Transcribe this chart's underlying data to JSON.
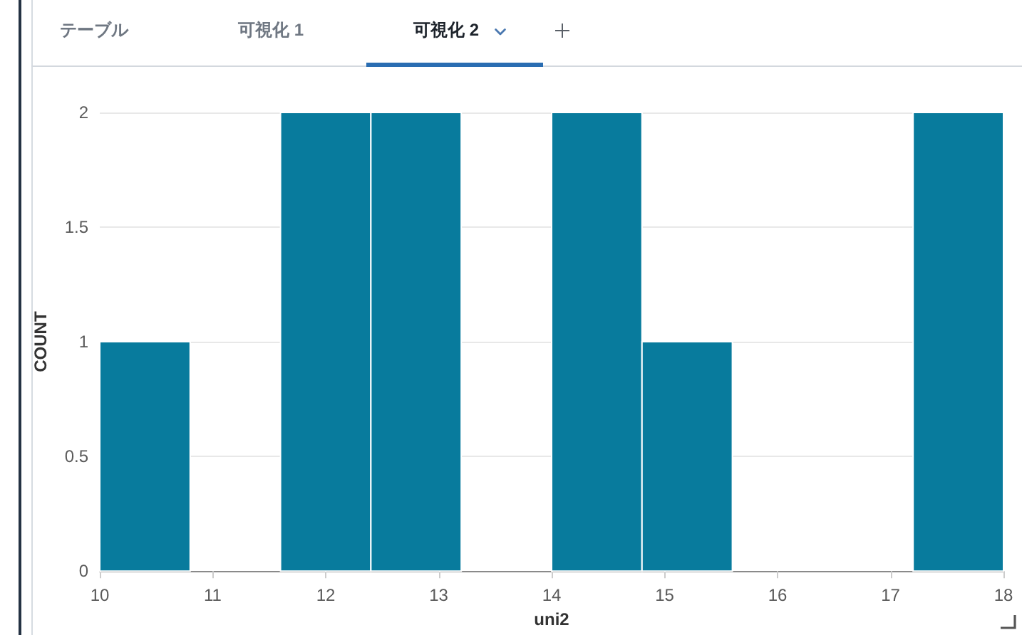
{
  "chart_data": {
    "type": "histogram",
    "annotations": [
      "テーブル",
      "可視化 1",
      "可視化 2"
    ],
    "xlabel": "uni2",
    "ylabel": "COUNT",
    "bins": [
      10,
      10.8,
      11.6,
      12.4,
      13.2,
      14,
      14.8,
      15.6,
      16.4,
      17.2,
      18
    ],
    "values": [
      1,
      0,
      2,
      2,
      0,
      2,
      1,
      0,
      0,
      2
    ],
    "color": "#087b9d",
    "xlim": [
      10,
      18
    ],
    "xticks": [
      10,
      11,
      12,
      13,
      14,
      15,
      16,
      17,
      18
    ],
    "ylim": [
      0,
      2
    ],
    "yticks": [
      0,
      0.5,
      1,
      1.5,
      2
    ],
    "grid": "y"
  }
}
